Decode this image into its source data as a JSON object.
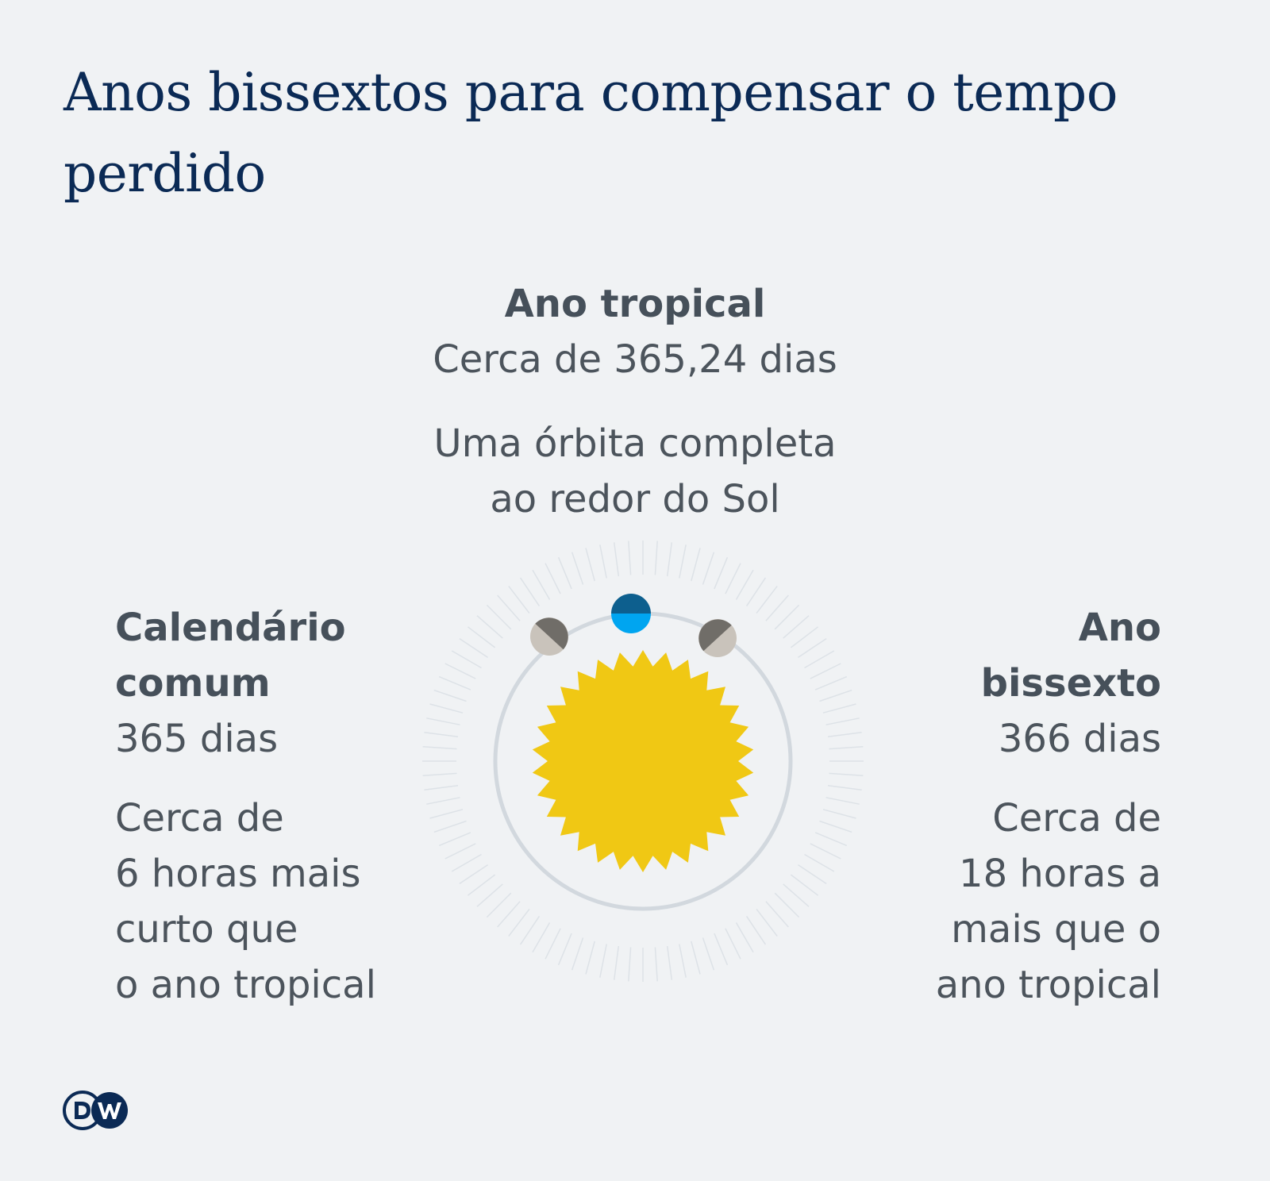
{
  "title": "Anos bissextos para compensar o tempo perdido",
  "tropical": {
    "heading": "Ano tropical",
    "days": "Cerca de 365,24 dias",
    "description_line1": "Uma órbita completa",
    "description_line2": "ao redor do Sol"
  },
  "common": {
    "heading_line1": "Calendário",
    "heading_line2": "comum",
    "days": "365 dias",
    "note_line1": "Cerca de",
    "note_line2": "6 horas mais",
    "note_line3": "curto que",
    "note_line4": "o ano tropical"
  },
  "leap": {
    "heading_line1": "Ano",
    "heading_line2": "bissexto",
    "days": "366 dias",
    "note_line1": "Cerca de",
    "note_line2": "18 horas a",
    "note_line3": "mais que o",
    "note_line4": "ano tropical"
  },
  "colors": {
    "title": "#0b2a55",
    "text": "#4c545c",
    "sun": "#f0c814",
    "orbit": "#d2d8de",
    "earth_dark": "#0d5f8e",
    "earth_light": "#00a5f0",
    "moon_dark": "#706d68",
    "moon_light": "#c9c3bb",
    "background": "#f0f2f4"
  },
  "logo": {
    "text": "DW"
  }
}
